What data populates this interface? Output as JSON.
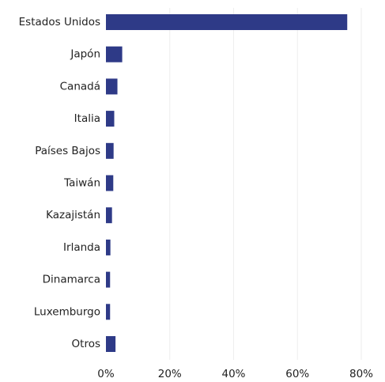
{
  "chart_data": {
    "type": "bar",
    "orientation": "horizontal",
    "categories": [
      "Estados Unidos",
      "Japón",
      "Canadá",
      "Italia",
      "Países Bajos",
      "Taiwán",
      "Kazajistán",
      "Irlanda",
      "Dinamarca",
      "Luxemburgo",
      "Otros"
    ],
    "values": [
      75.6,
      5.1,
      3.6,
      2.6,
      2.4,
      2.3,
      1.9,
      1.4,
      1.3,
      1.3,
      3.0
    ],
    "xlim": [
      0,
      80
    ],
    "xticks": [
      0,
      20,
      40,
      60,
      80
    ],
    "xtick_labels": [
      "0%",
      "20%",
      "40%",
      "60%",
      "80%"
    ],
    "title": "",
    "xlabel": "",
    "ylabel": "",
    "grid": "vertical",
    "legend": "none",
    "bar_color": "#2e3a87",
    "grid_color": "#eeeeee"
  }
}
